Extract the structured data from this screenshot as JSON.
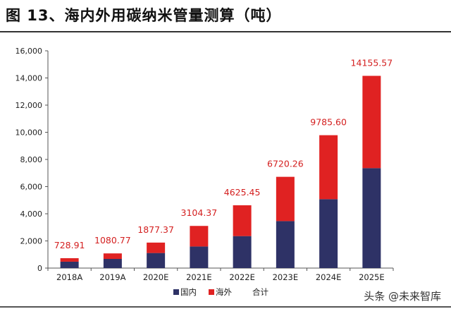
{
  "title": "图 13、海内外用碳纳米管量测算（吨）",
  "watermark": "头条 @未来智库",
  "colors": {
    "domestic": "#2e3266",
    "overseas": "#e02222",
    "label": "#d42020"
  },
  "chart_data": {
    "type": "bar",
    "stacked": true,
    "title": "图 13、海内外用碳纳米管量测算（吨）",
    "categories": [
      "2018A",
      "2019A",
      "2020E",
      "2021E",
      "2022E",
      "2023E",
      "2024E",
      "2025E"
    ],
    "series": [
      {
        "name": "国内",
        "values": [
          470,
          675,
          1110,
          1590,
          2355,
          3460,
          5075,
          7360
        ]
      },
      {
        "name": "海外",
        "values": [
          258.91,
          405.77,
          767.37,
          1514.37,
          2270.45,
          3260.26,
          4710.6,
          6795.57
        ]
      }
    ],
    "totals": {
      "name": "合计",
      "values": [
        728.91,
        1080.77,
        1877.37,
        3104.37,
        4625.45,
        6720.26,
        9785.6,
        14155.57
      ]
    },
    "total_labels": [
      "728.91",
      "1080.77",
      "1877.37",
      "3104.37",
      "4625.45",
      "6720.26",
      "9785.60",
      "14155.57"
    ],
    "yticks": [
      "0",
      "2,000",
      "4,000",
      "6,000",
      "8,000",
      "10,000",
      "12,000",
      "14,000",
      "16,000"
    ],
    "ylim": [
      0,
      16000
    ],
    "xlabel": "",
    "ylabel": "",
    "grid": false,
    "legend": "bottom"
  }
}
